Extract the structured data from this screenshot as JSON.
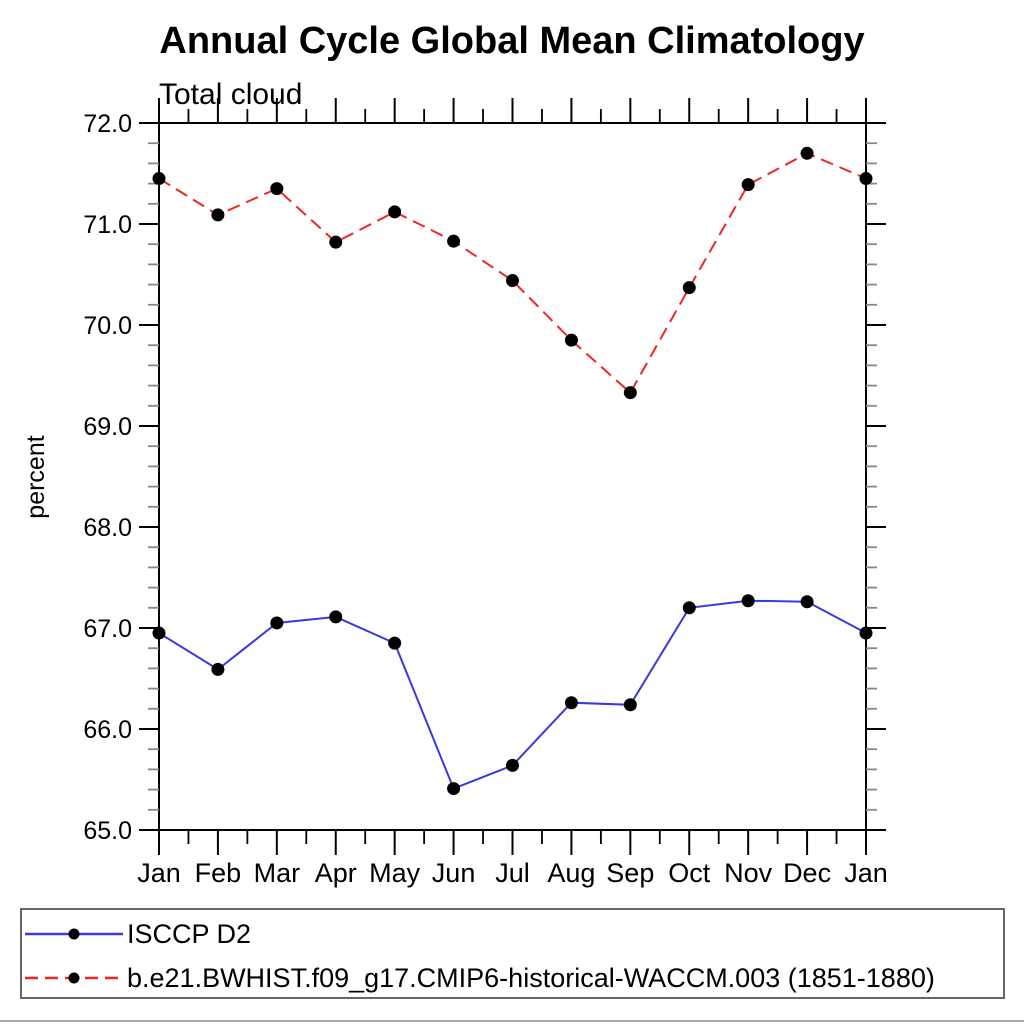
{
  "page": {
    "title": "Annual Cycle Global Mean Climatology",
    "subtitle": "Total cloud",
    "ylabel": "percent"
  },
  "legend": {
    "position": "bottom-left-box",
    "items": [
      {
        "label": "ISCCP D2",
        "color": "#3a3adc",
        "line_style": "solid",
        "marker": "filled-circle",
        "marker_color": "#000000"
      },
      {
        "label": "b.e21.BWHIST.f09_g17.CMIP6-historical-WACCM.003 (1851-1880)",
        "color": "#ee2626",
        "line_style": "dashed",
        "marker": "filled-circle",
        "marker_color": "#000000"
      }
    ]
  },
  "chart_data": {
    "type": "line",
    "title": "Annual Cycle Global Mean Climatology",
    "subtitle": "Total cloud",
    "xlabel": "",
    "ylabel": "percent",
    "categories": [
      "Jan",
      "Feb",
      "Mar",
      "Apr",
      "May",
      "Jun",
      "Jul",
      "Aug",
      "Sep",
      "Oct",
      "Nov",
      "Dec",
      "Jan"
    ],
    "series": [
      {
        "name": "ISCCP D2",
        "color": "#3a3adc",
        "line_style": "solid",
        "marker": "filled-circle",
        "marker_color": "#000000",
        "values": [
          66.95,
          66.59,
          67.05,
          67.11,
          66.85,
          65.41,
          65.64,
          66.26,
          66.24,
          67.2,
          67.27,
          67.26,
          66.95
        ]
      },
      {
        "name": "b.e21.BWHIST.f09_g17.CMIP6-historical-WACCM.003 (1851-1880)",
        "color": "#ee2626",
        "line_style": "dashed",
        "marker": "filled-circle",
        "marker_color": "#000000",
        "values": [
          71.45,
          71.09,
          71.35,
          70.82,
          71.12,
          70.83,
          70.44,
          69.85,
          69.33,
          70.37,
          71.39,
          71.7,
          71.45
        ]
      }
    ],
    "ylim": [
      65.0,
      72.0
    ],
    "ytick_interval": 1.0,
    "y_minor_interval": 0.2,
    "ytick_labels": [
      "65.0",
      "66.0",
      "67.0",
      "68.0",
      "69.0",
      "70.0",
      "71.0",
      "72.0"
    ],
    "grid": false,
    "legend_position": "bottom"
  },
  "colors": {
    "frame": "#000000",
    "minor_tick": "#888888",
    "legend_border": "#666666",
    "bottom_rule": "#aaaaaa"
  }
}
